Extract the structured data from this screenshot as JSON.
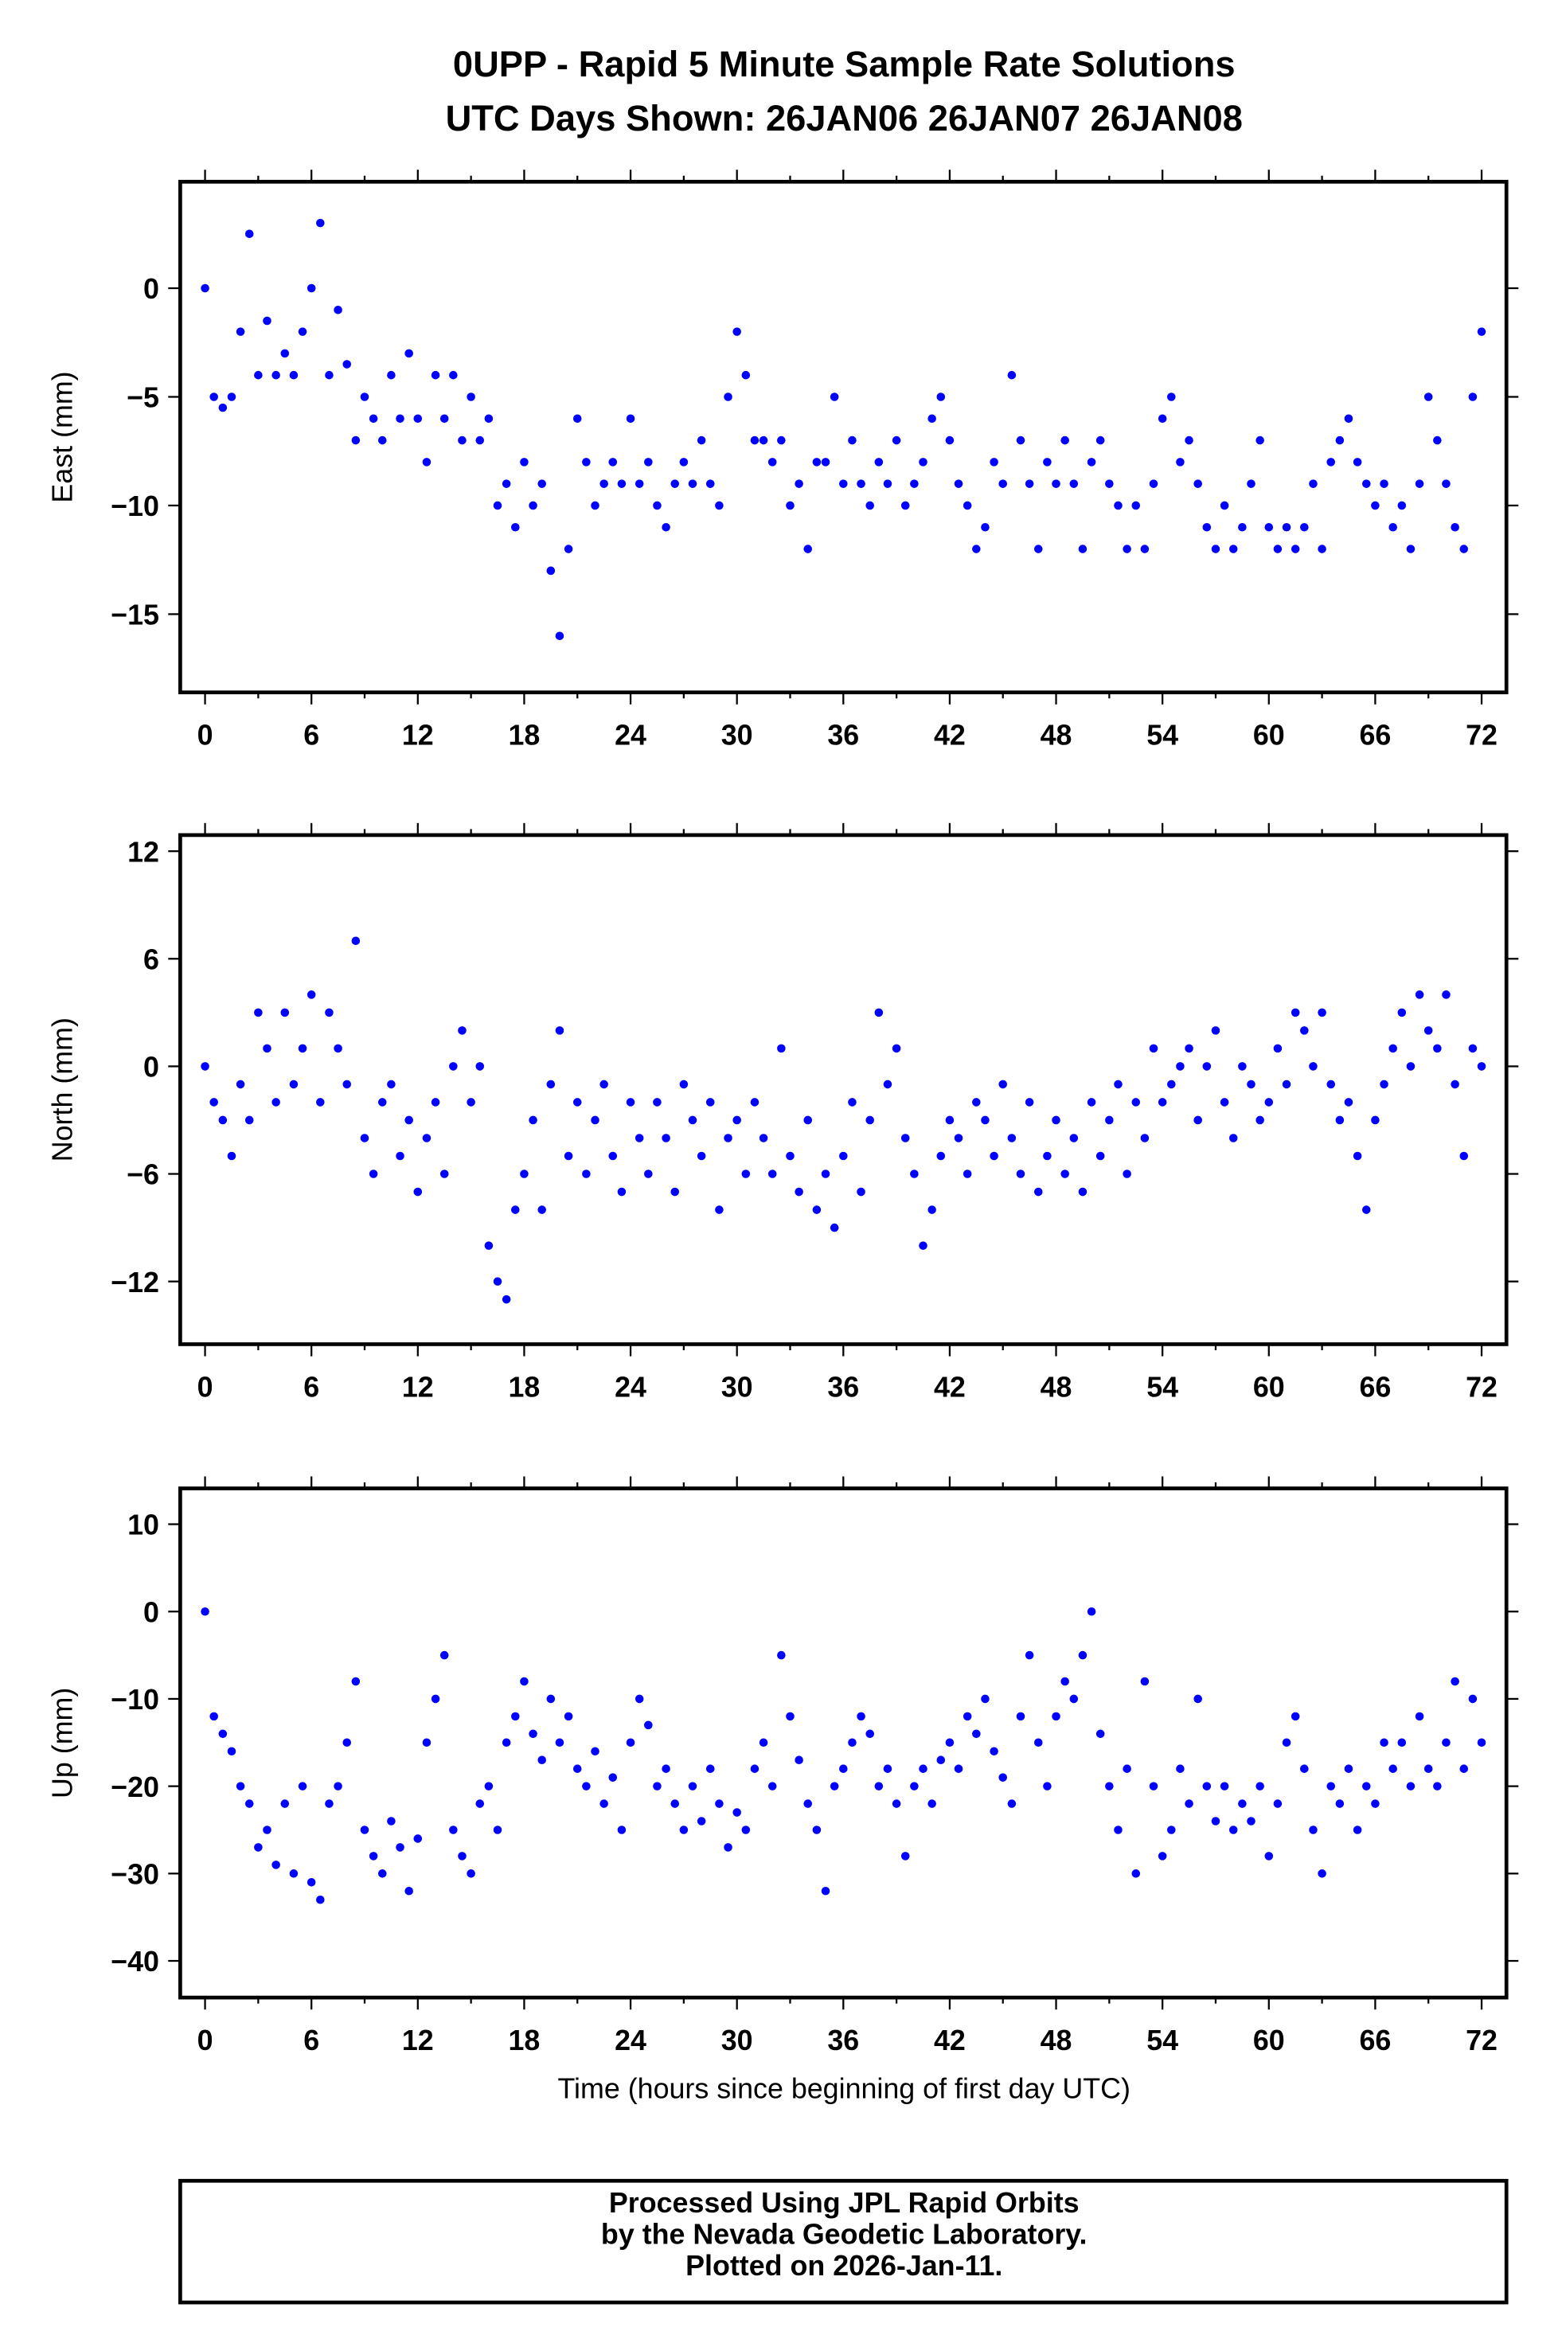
{
  "title": "0UPP - Rapid 5 Minute Sample Rate Solutions",
  "subtitle": "UTC Days Shown:  26JAN06 26JAN07 26JAN08",
  "footer": [
    "Processed Using JPL Rapid Orbits",
    "by the Nevada Geodetic Laboratory.",
    "Plotted on 2026-Jan-11."
  ],
  "point_color": "#0000ff",
  "chart_data": [
    {
      "type": "scatter",
      "ylabel": "East (mm)",
      "xlabel": "",
      "xlim": [
        -1.4,
        73.4
      ],
      "ylim": [
        -18.6,
        4.9
      ],
      "xticks": [
        "0",
        "6",
        "12",
        "18",
        "24",
        "30",
        "36",
        "42",
        "48",
        "54",
        "60",
        "66",
        "72"
      ],
      "yticks": [
        {
          "v": 0,
          "label": "0"
        },
        {
          "v": -5,
          "label": "−5"
        },
        {
          "v": -10,
          "label": "−10"
        },
        {
          "v": -15,
          "label": "−15"
        }
      ],
      "x_step": 0.5,
      "y": [
        0,
        -5,
        -5.5,
        -5,
        -2,
        2.5,
        -4,
        -1.5,
        -4,
        -3,
        -4,
        -2,
        0,
        3,
        -4,
        -1,
        -3.5,
        -7,
        -5,
        -6,
        -7,
        -4,
        -6,
        -3,
        -6,
        -8,
        -4,
        -6,
        -4,
        -7,
        -5,
        -7,
        -6,
        -10,
        -9,
        -11,
        -8,
        -10,
        -9,
        -13,
        -16,
        -12,
        -6,
        -8,
        -10,
        -9,
        -8,
        -9,
        -6,
        -9,
        -8,
        -10,
        -11,
        -9,
        -8,
        -9,
        -7,
        -9,
        -10,
        -5,
        -2,
        -4,
        -7,
        -7,
        -8,
        -7,
        -10,
        -9,
        -12,
        -8,
        -8,
        -5,
        -9,
        -7,
        -9,
        -10,
        -8,
        -9,
        -7,
        -10,
        -9,
        -8,
        -6,
        -5,
        -7,
        -9,
        -10,
        -12,
        -11,
        -8,
        -9,
        -4,
        -7,
        -9,
        -12,
        -8,
        -9,
        -7,
        -9,
        -12,
        -8,
        -7,
        -9,
        -10,
        -12,
        -10,
        -12,
        -9,
        -6,
        -5,
        -8,
        -7,
        -9,
        -11,
        -12,
        -10,
        -12,
        -11,
        -9,
        -7,
        -11,
        -12,
        -11,
        -12,
        -11,
        -9,
        -12,
        -8,
        -7,
        -6,
        -8,
        -9,
        -10,
        -9,
        -11,
        -10,
        -12,
        -9,
        -5,
        -7,
        -9,
        -11,
        -12,
        -5,
        -2
      ]
    },
    {
      "type": "scatter",
      "ylabel": "North (mm)",
      "xlabel": "",
      "xlim": [
        -1.4,
        73.4
      ],
      "ylim": [
        -15.5,
        12.9
      ],
      "xticks": [
        "0",
        "6",
        "12",
        "18",
        "24",
        "30",
        "36",
        "42",
        "48",
        "54",
        "60",
        "66",
        "72"
      ],
      "yticks": [
        {
          "v": 12,
          "label": "12"
        },
        {
          "v": 6,
          "label": "6"
        },
        {
          "v": 0,
          "label": "0"
        },
        {
          "v": -6,
          "label": "−6"
        },
        {
          "v": -12,
          "label": "−12"
        }
      ],
      "x_step": 0.5,
      "y": [
        0,
        -2,
        -3,
        -5,
        -1,
        -3,
        3,
        1,
        -2,
        3,
        -1,
        1,
        4,
        -2,
        3,
        1,
        -1,
        7,
        -4,
        -6,
        -2,
        -1,
        -5,
        -3,
        -7,
        -4,
        -2,
        -6,
        0,
        2,
        -2,
        0,
        -10,
        -12,
        -13,
        -8,
        -6,
        -3,
        -8,
        -1,
        2,
        -5,
        -2,
        -6,
        -3,
        -1,
        -5,
        -7,
        -2,
        -4,
        -6,
        -2,
        -4,
        -7,
        -1,
        -3,
        -5,
        -2,
        -8,
        -4,
        -3,
        -6,
        -2,
        -4,
        -6,
        1,
        -5,
        -7,
        -3,
        -8,
        -6,
        -9,
        -5,
        -2,
        -7,
        -3,
        3,
        -1,
        1,
        -4,
        -6,
        -10,
        -8,
        -5,
        -3,
        -4,
        -6,
        -2,
        -3,
        -5,
        -1,
        -4,
        -6,
        -2,
        -7,
        -5,
        -3,
        -6,
        -4,
        -7,
        -2,
        -5,
        -3,
        -1,
        -6,
        -2,
        -4,
        1,
        -2,
        -1,
        0,
        1,
        -3,
        0,
        2,
        -2,
        -4,
        0,
        -1,
        -3,
        -2,
        1,
        -1,
        3,
        2,
        0,
        3,
        -1,
        -3,
        -2,
        -5,
        -8,
        -3,
        -1,
        1,
        3,
        0,
        4,
        2,
        1,
        4,
        -1,
        -5,
        1,
        0
      ]
    },
    {
      "type": "scatter",
      "ylabel": "Up (mm)",
      "xlabel": "Time (hours since beginning of first day UTC)",
      "xlim": [
        -1.4,
        73.4
      ],
      "ylim": [
        -44.2,
        14.1
      ],
      "xticks": [
        "0",
        "6",
        "12",
        "18",
        "24",
        "30",
        "36",
        "42",
        "48",
        "54",
        "60",
        "66",
        "72"
      ],
      "yticks": [
        {
          "v": 10,
          "label": "10"
        },
        {
          "v": 0,
          "label": "0"
        },
        {
          "v": -10,
          "label": "−10"
        },
        {
          "v": -20,
          "label": "−20"
        },
        {
          "v": -30,
          "label": "−30"
        },
        {
          "v": -40,
          "label": "−40"
        }
      ],
      "x_step": 0.5,
      "y": [
        0,
        -12,
        -14,
        -16,
        -20,
        -22,
        -27,
        -25,
        -29,
        -22,
        -30,
        -20,
        -31,
        -33,
        -22,
        -20,
        -15,
        -8,
        -25,
        -28,
        -30,
        -24,
        -27,
        -32,
        -26,
        -15,
        -10,
        -5,
        -25,
        -28,
        -30,
        -22,
        -20,
        -25,
        -15,
        -12,
        -8,
        -14,
        -17,
        -10,
        -15,
        -12,
        -18,
        -20,
        -16,
        -22,
        -19,
        -25,
        -15,
        -10,
        -13,
        -20,
        -18,
        -22,
        -25,
        -20,
        -24,
        -18,
        -22,
        -27,
        -23,
        -25,
        -18,
        -15,
        -20,
        -5,
        -12,
        -17,
        -22,
        -25,
        -32,
        -20,
        -18,
        -15,
        -12,
        -14,
        -20,
        -18,
        -22,
        -28,
        -20,
        -18,
        -22,
        -17,
        -15,
        -18,
        -12,
        -14,
        -10,
        -16,
        -19,
        -22,
        -12,
        -5,
        -15,
        -20,
        -12,
        -8,
        -10,
        -5,
        0,
        -14,
        -20,
        -25,
        -18,
        -30,
        -8,
        -20,
        -28,
        -25,
        -18,
        -22,
        -10,
        -20,
        -24,
        -20,
        -25,
        -22,
        -24,
        -20,
        -28,
        -22,
        -15,
        -12,
        -18,
        -25,
        -30,
        -20,
        -22,
        -18,
        -25,
        -20,
        -22,
        -15,
        -18,
        -15,
        -20,
        -12,
        -18,
        -20,
        -15,
        -8,
        -18,
        -10,
        -15
      ]
    }
  ]
}
